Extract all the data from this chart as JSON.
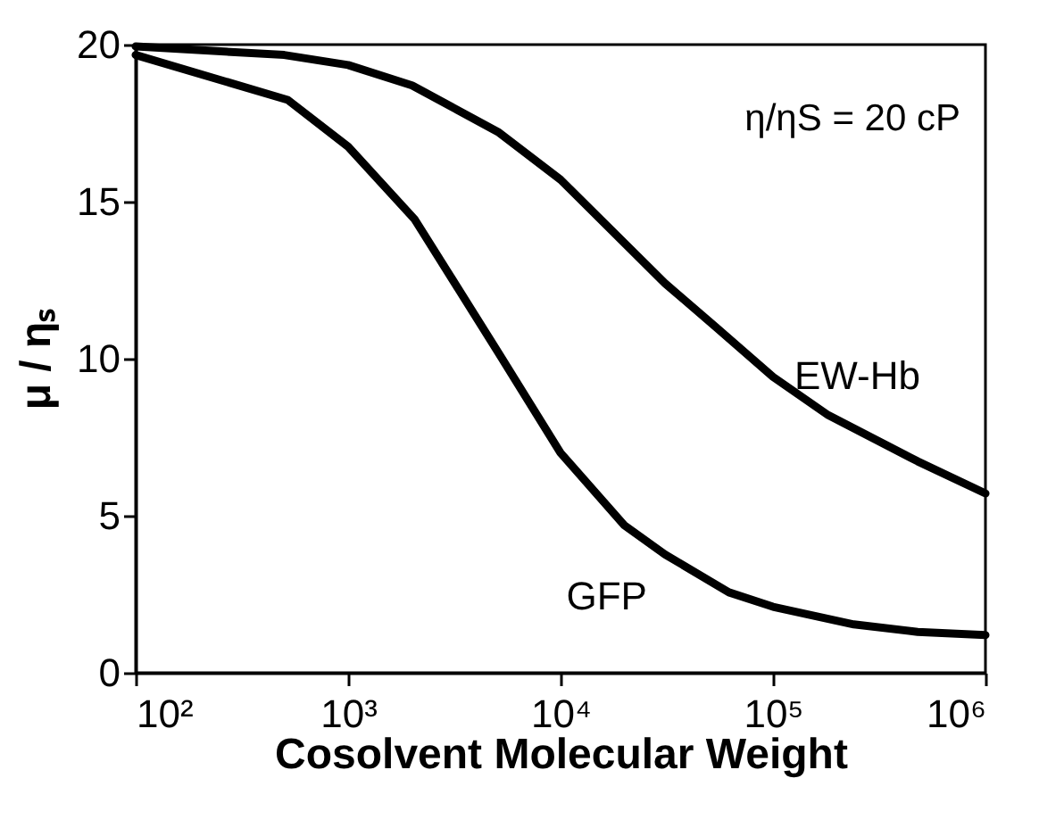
{
  "chart_data": {
    "type": "line",
    "xlabel": "Cosolvent Molecular Weight",
    "ylabel": "μ / ηₛ",
    "log": "x",
    "xlim": [
      100,
      1000000
    ],
    "ylim": [
      0,
      20
    ],
    "xticks": [
      {
        "value": 100,
        "label": "10²"
      },
      {
        "value": 1000,
        "label": "10³"
      },
      {
        "value": 10000,
        "label": "10⁴"
      },
      {
        "value": 100000,
        "label": "10⁵"
      },
      {
        "value": 1000000,
        "label": "10⁶"
      }
    ],
    "yticks": [
      0,
      5,
      10,
      15,
      20
    ],
    "grid": false,
    "legend": false,
    "marker": "none",
    "line_style": "solid",
    "annotations": [
      "η/ηS = 20 cP"
    ],
    "series": [
      {
        "name": "EW-Hb",
        "color": "#000000",
        "x": [
          100,
          500,
          1000,
          2000,
          5130,
          10000,
          31000,
          54000,
          100000,
          182000,
          480000,
          1000000
        ],
        "values": [
          19.94,
          19.67,
          19.35,
          18.7,
          17.2,
          15.7,
          12.4,
          11.0,
          9.42,
          8.2,
          6.73,
          5.71
        ]
      },
      {
        "name": "GFP",
        "color": "#000000",
        "x": [
          100,
          520,
          1000,
          2060,
          5130,
          10000,
          20000,
          31000,
          62000,
          100000,
          240000,
          480000,
          1000000
        ],
        "values": [
          19.67,
          18.24,
          16.75,
          14.43,
          10.16,
          7.0,
          4.69,
          3.77,
          2.56,
          2.1,
          1.54,
          1.3,
          1.2
        ]
      }
    ]
  }
}
